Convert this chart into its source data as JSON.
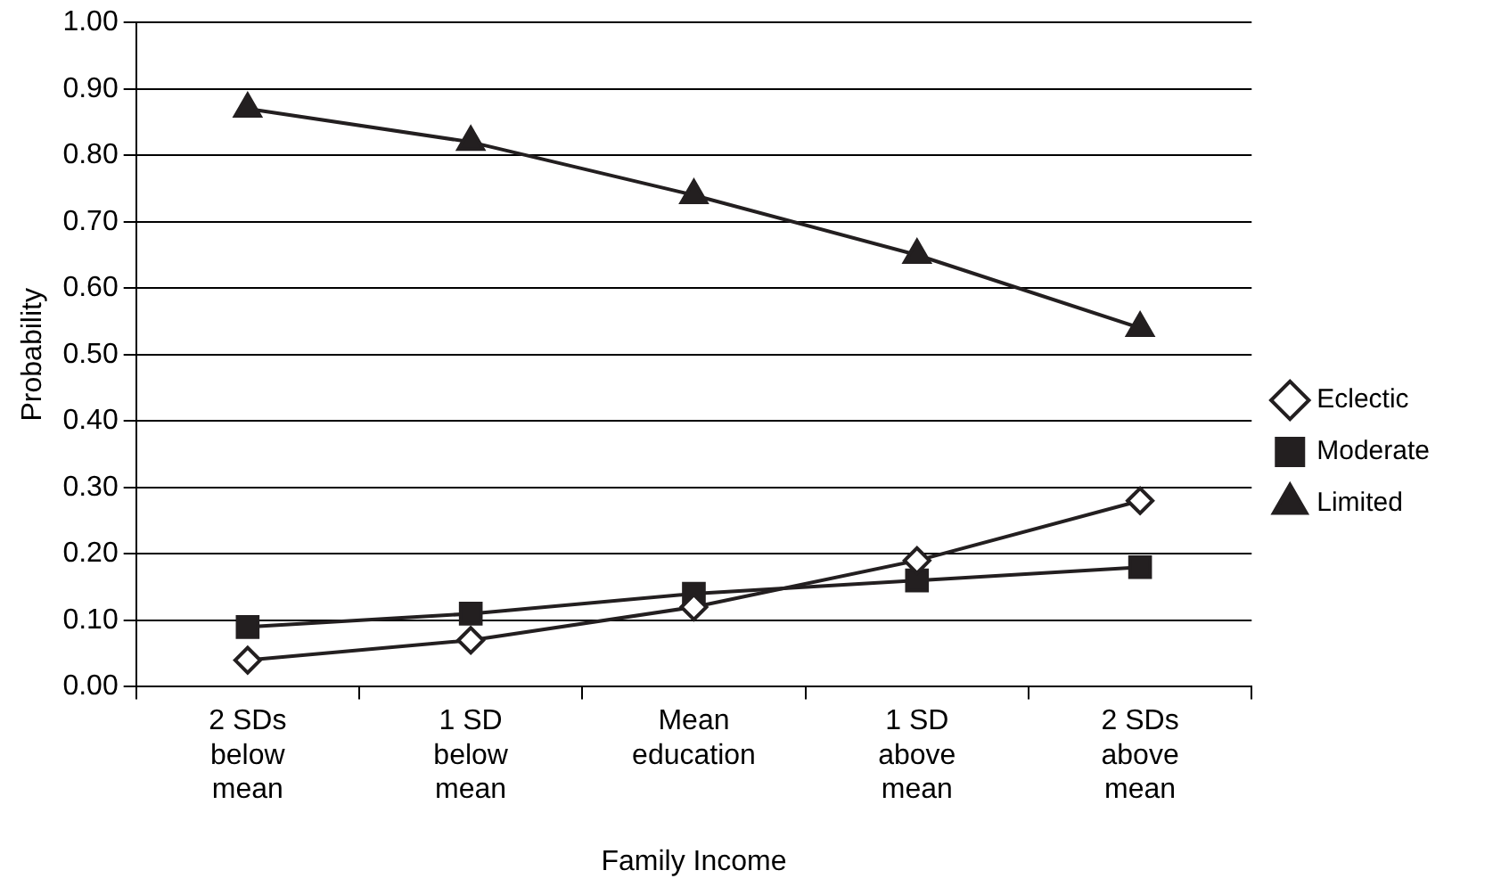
{
  "chart_data": {
    "type": "line",
    "xlabel": "Family Income",
    "ylabel": "Probability",
    "categories": [
      "2 SDs below mean",
      "1 SD below mean",
      "Mean education",
      "1 SD above mean",
      "2 SDs above mean"
    ],
    "series": [
      {
        "name": "Eclectic",
        "color": "#231f20",
        "marker": "diamond",
        "values": [
          0.04,
          0.07,
          0.12,
          0.19,
          0.28
        ]
      },
      {
        "name": "Moderate",
        "color": "#231f20",
        "marker": "square",
        "values": [
          0.09,
          0.11,
          0.14,
          0.16,
          0.18
        ]
      },
      {
        "name": "Limited",
        "color": "#231f20",
        "marker": "triangle",
        "values": [
          0.87,
          0.82,
          0.74,
          0.65,
          0.54
        ]
      }
    ],
    "ylim": [
      0,
      1
    ],
    "yticks": [
      {
        "value": 0,
        "label": "0.00"
      },
      {
        "value": 0.1,
        "label": "0.10"
      },
      {
        "value": 0.2,
        "label": "0.20"
      },
      {
        "value": 0.3,
        "label": "0.30"
      },
      {
        "value": 0.4,
        "label": "0.40"
      },
      {
        "value": 0.5,
        "label": "0.50"
      },
      {
        "value": 0.6,
        "label": "0.60"
      },
      {
        "value": 0.7,
        "label": "0.70"
      },
      {
        "value": 0.8,
        "label": "0.80"
      },
      {
        "value": 0.9,
        "label": "0.90"
      },
      {
        "value": 1,
        "label": "1.00"
      }
    ],
    "grid": "y",
    "legend": "right",
    "line_style": "solid"
  }
}
